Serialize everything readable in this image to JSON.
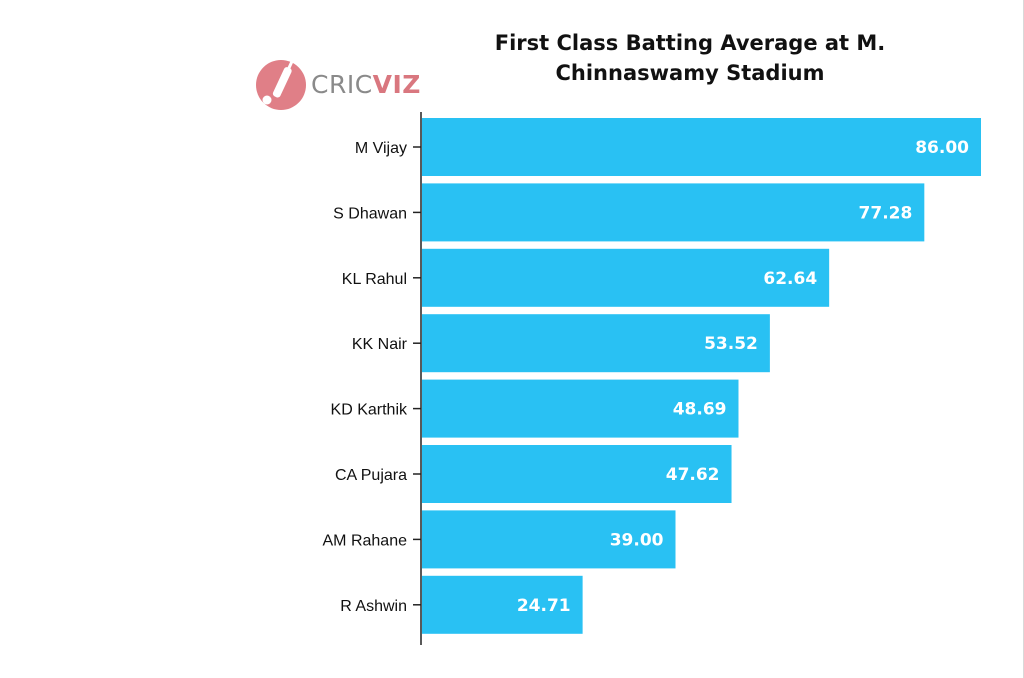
{
  "colors": {
    "bar": "#29c1f3",
    "axis": "#222222",
    "logo_circle": "#e07f87",
    "label_text": "#ffffff"
  },
  "logo": {
    "part1": "CRIC",
    "part2": "VIZ",
    "icon": "cricket-bat-ball-icon"
  },
  "chart_data": {
    "type": "bar",
    "orientation": "horizontal",
    "title": "First Class Batting Average at M. Chinnaswamy Stadium",
    "xlabel": "",
    "ylabel": "",
    "categories": [
      "M Vijay",
      "S Dhawan",
      "KL Rahul",
      "KK Nair",
      "KD Karthik",
      "CA Pujara",
      "AM Rahane",
      "R Ashwin"
    ],
    "values": [
      86.0,
      77.28,
      62.64,
      53.52,
      48.69,
      47.62,
      39.0,
      24.71
    ],
    "data_labels": [
      "86.00",
      "77.28",
      "62.64",
      "53.52",
      "48.69",
      "47.62",
      "39.00",
      "24.71"
    ],
    "xlim": [
      0,
      86
    ],
    "grid": false,
    "legend": "none"
  }
}
